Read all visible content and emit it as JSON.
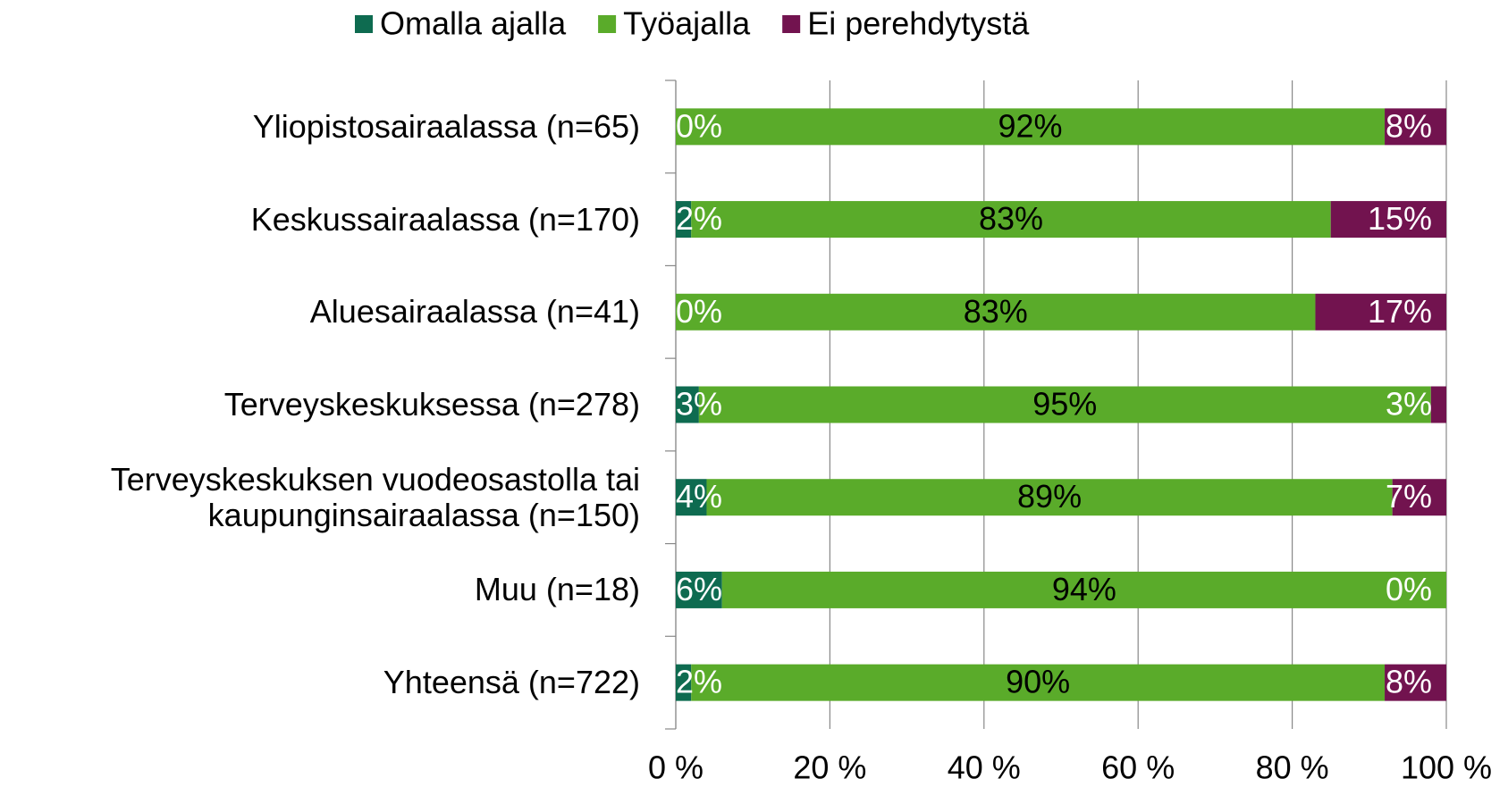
{
  "chart_data": {
    "type": "stacked_barh",
    "categories": [
      "Yliopistosairaalassa (n=65)",
      "Keskussairaalassa (n=170)",
      "Aluesairaalassa (n=41)",
      "Terveyskeskuksessa (n=278)",
      "Terveyskeskuksen vuodeosastolla tai kaupunginsairaalassa (n=150)",
      "Muu (n=18)",
      "Yhteensä (n=722)"
    ],
    "series": [
      {
        "name": "Omalla ajalla",
        "color": "#0e6b50",
        "values": [
          0,
          2,
          0,
          3,
          4,
          6,
          2
        ],
        "value_labels": [
          "0%",
          "2%",
          "0%",
          "3%",
          "4%",
          "6%",
          "2%"
        ]
      },
      {
        "name": "Työajalla",
        "color": "#5aab2a",
        "values": [
          92,
          83,
          83,
          95,
          89,
          94,
          90
        ],
        "value_labels": [
          "92%",
          "83%",
          "83%",
          "95%",
          "89%",
          "94%",
          "90%"
        ]
      },
      {
        "name": "Ei perehdytystä",
        "color": "#72134f",
        "values": [
          8,
          15,
          17,
          3,
          7,
          0,
          8
        ],
        "value_labels": [
          "8%",
          "15%",
          "17%",
          "3%",
          "7%",
          "0%",
          "8%"
        ]
      }
    ],
    "xlim": [
      0,
      100
    ],
    "xticks": [
      {
        "value": 0,
        "label": "0 %"
      },
      {
        "value": 20,
        "label": "20 %"
      },
      {
        "value": 40,
        "label": "40 %"
      },
      {
        "value": 60,
        "label": "60 %"
      },
      {
        "value": 80,
        "label": "80 %"
      },
      {
        "value": 100,
        "label": "100 %"
      }
    ],
    "grid": true,
    "legend": "top"
  }
}
